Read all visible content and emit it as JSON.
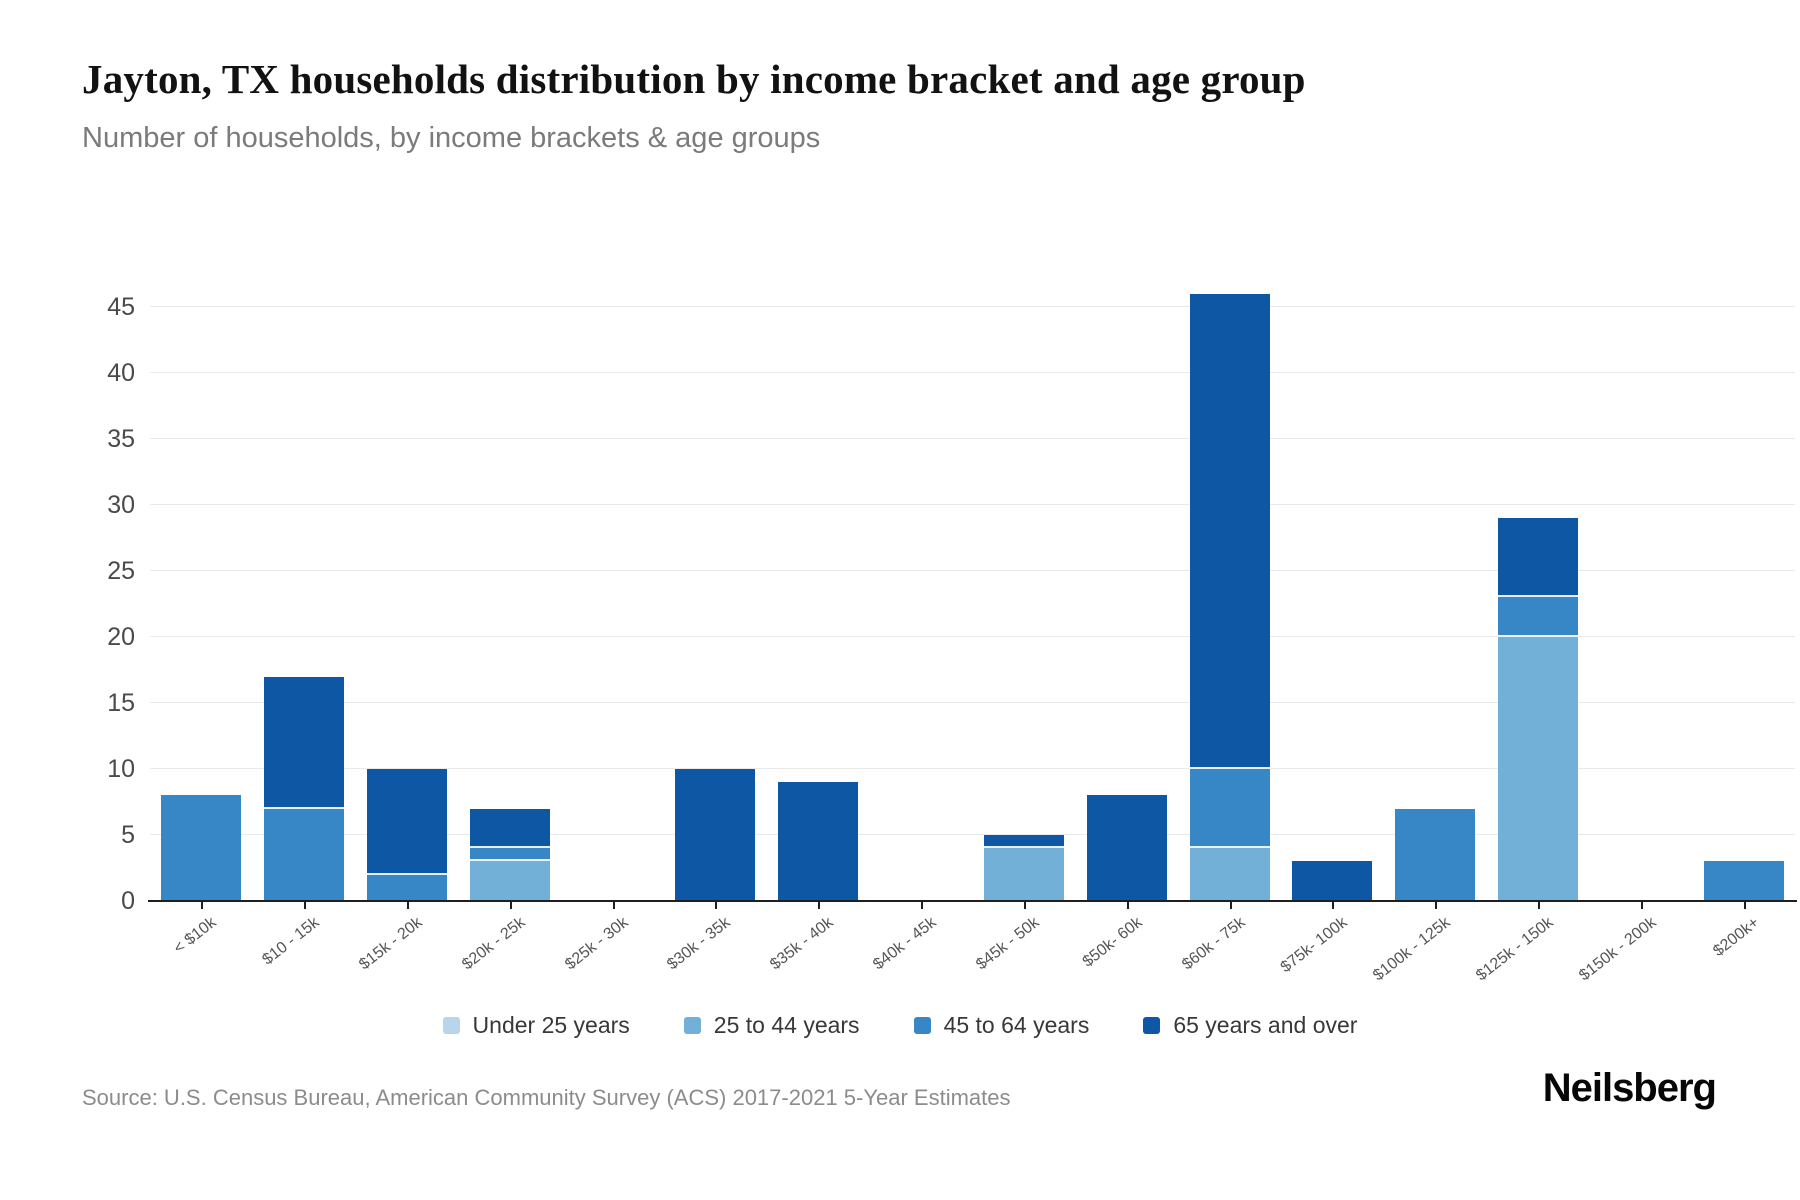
{
  "header": {
    "title": "Jayton, TX households distribution by income bracket and age group",
    "subtitle": "Number of households, by income brackets & age groups"
  },
  "chart_data": {
    "type": "bar",
    "stacked": true,
    "title": "Jayton, TX households distribution by income bracket and age group",
    "subtitle": "Number of households, by income brackets & age groups",
    "xlabel": "",
    "ylabel": "",
    "ylim": [
      0,
      45
    ],
    "ytick_step": 5,
    "grid": true,
    "legend_position": "bottom",
    "categories": [
      "< $10k",
      "$10 - 15k",
      "$15k - 20k",
      "$20k - 25k",
      "$25k - 30k",
      "$30k - 35k",
      "$35k - 40k",
      "$40k - 45k",
      "$45k - 50k",
      "$50k- 60k",
      "$60k - 75k",
      "$75k- 100k",
      "$100k - 125k",
      "$125k - 150k",
      "$150k - 200k",
      "$200k+"
    ],
    "series": [
      {
        "name": "Under 25 years",
        "color": "#b9d5ea",
        "values": [
          0,
          0,
          0,
          0,
          0,
          0,
          0,
          0,
          0,
          0,
          0,
          0,
          0,
          0,
          0,
          0
        ]
      },
      {
        "name": "25 to 44 years",
        "color": "#72b0d8",
        "values": [
          0,
          0,
          0,
          3,
          0,
          0,
          0,
          0,
          4,
          0,
          4,
          0,
          0,
          20,
          0,
          0
        ]
      },
      {
        "name": "45 to 64 years",
        "color": "#3787c6",
        "values": [
          8,
          7,
          2,
          1,
          0,
          0,
          0,
          0,
          0,
          0,
          6,
          0,
          7,
          3,
          0,
          3
        ]
      },
      {
        "name": "65 years and over",
        "color": "#0d57a4",
        "values": [
          0,
          10,
          8,
          3,
          0,
          10,
          9,
          0,
          1,
          8,
          36,
          3,
          0,
          6,
          0,
          0
        ]
      }
    ],
    "totals": [
      8,
      17,
      10,
      7,
      0,
      10,
      9,
      0,
      5,
      8,
      46,
      3,
      7,
      29,
      0,
      3
    ]
  },
  "footer": {
    "source": "Source: U.S. Census Bureau, American Community Survey (ACS) 2017-2021 5-Year Estimates",
    "brand": "Neilsberg"
  }
}
